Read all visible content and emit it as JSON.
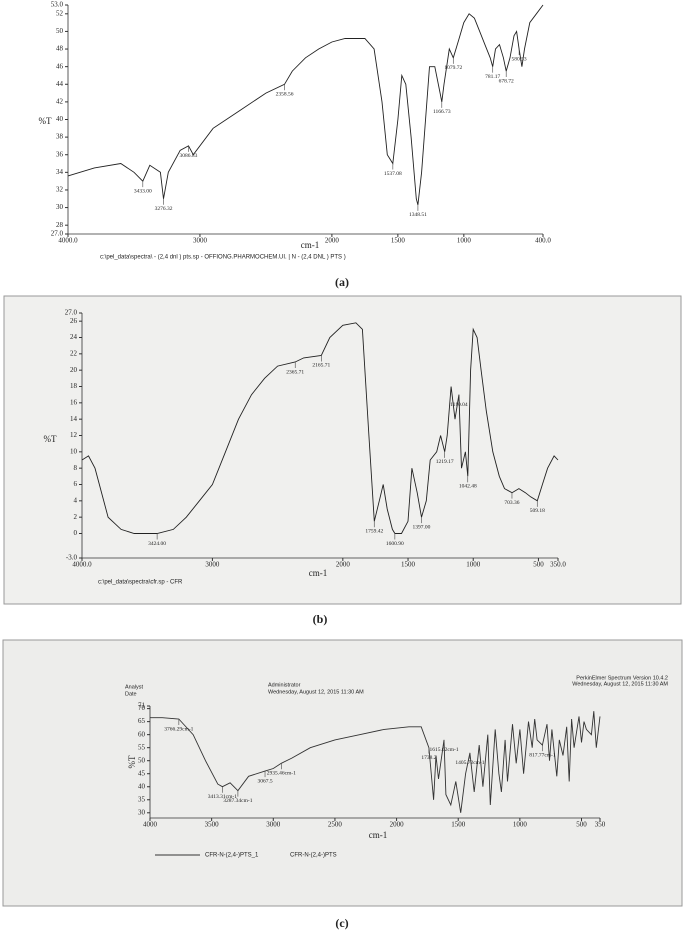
{
  "captions": [
    "(a)",
    "(b)",
    "(c)"
  ],
  "chart_data": [
    {
      "type": "line",
      "ylabel": "%T",
      "xlabel": "cm-1",
      "footnote": "c:\\pel_data\\spectra\\ - (2,4 dnl ) pts.sp - OFFIONG.PHARMOCHEM.UI. | N - (2,4 DNL ) PTS )",
      "xlim": [
        4000,
        400
      ],
      "xticks": [
        {
          "value": 4000,
          "label": "4000.0"
        },
        3000,
        2000,
        1500,
        1000,
        {
          "value": 400,
          "label": "400.0"
        }
      ],
      "ylim": [
        27,
        53
      ],
      "yticks": [
        {
          "value": 27,
          "label": "27.0"
        },
        28,
        30,
        32,
        34,
        36,
        38,
        40,
        42,
        44,
        46,
        48,
        50,
        52,
        {
          "value": 53,
          "label": "53.0"
        }
      ],
      "x": [
        4000,
        3800,
        3600,
        3500,
        3433,
        3380,
        3300,
        3276,
        3240,
        3150,
        3087,
        3050,
        2900,
        2700,
        2500,
        2359,
        2300,
        2200,
        2100,
        2000,
        1900,
        1750,
        1680,
        1620,
        1580,
        1538,
        1500,
        1470,
        1440,
        1400,
        1360,
        1348,
        1320,
        1260,
        1220,
        1180,
        1167,
        1150,
        1110,
        1080,
        1040,
        1000,
        960,
        920,
        880,
        840,
        800,
        781,
        760,
        730,
        700,
        679,
        650,
        620,
        600,
        581,
        560,
        540,
        500,
        450,
        400
      ],
      "series": [
        {
          "color": "#222222",
          "values": [
            33.6,
            34.5,
            35,
            34,
            33,
            34.8,
            34,
            31,
            34,
            36.5,
            37,
            36,
            39,
            41,
            43,
            44,
            45.5,
            47,
            48,
            48.8,
            49.2,
            49.2,
            48,
            42,
            36,
            35,
            40,
            45,
            44,
            38,
            31,
            30.3,
            34,
            46,
            46,
            43,
            42,
            44,
            48,
            47,
            49,
            51,
            52,
            51.5,
            50,
            48.5,
            47,
            46,
            48,
            48.5,
            47,
            45.5,
            47,
            49.5,
            50,
            48,
            46,
            48,
            51,
            52,
            53
          ]
        }
      ],
      "annotations": [
        {
          "label": "3433.00",
          "x": 3433,
          "y": 33
        },
        {
          "label": "3276.32",
          "x": 3276,
          "y": 31
        },
        {
          "label": "3086.83",
          "x": 3087,
          "y": 37
        },
        {
          "label": "2358.56",
          "x": 2359,
          "y": 44
        },
        {
          "label": "1537.08",
          "x": 1538,
          "y": 35
        },
        {
          "label": "1348.51",
          "x": 1348,
          "y": 30.3
        },
        {
          "label": "1166.73",
          "x": 1167,
          "y": 42
        },
        {
          "label": "1079.72",
          "x": 1080,
          "y": 47
        },
        {
          "label": "781.17",
          "x": 781,
          "y": 46
        },
        {
          "label": "678.72",
          "x": 679,
          "y": 45.5
        },
        {
          "label": "580.53",
          "x": 581,
          "y": 48
        }
      ]
    },
    {
      "type": "line",
      "ylabel": "%T",
      "xlabel": "cm-1",
      "footnote": "c:\\pel_data\\spectra\\cfr.sp - CFR",
      "xlim": [
        4000,
        350
      ],
      "xticks": [
        {
          "value": 4000,
          "label": "4000.0"
        },
        3000,
        2000,
        1500,
        1000,
        500,
        {
          "value": 350,
          "label": "350.0"
        }
      ],
      "ylim": [
        -3,
        27
      ],
      "yticks": [
        {
          "value": -3,
          "label": "-3.0"
        },
        0,
        2,
        4,
        6,
        8,
        10,
        12,
        14,
        16,
        18,
        20,
        22,
        24,
        26,
        {
          "value": 27,
          "label": "27.0"
        }
      ],
      "x": [
        4000,
        3950,
        3900,
        3800,
        3700,
        3600,
        3424,
        3300,
        3200,
        3100,
        3000,
        2900,
        2800,
        2700,
        2600,
        2500,
        2365,
        2300,
        2165,
        2100,
        2000,
        1900,
        1850,
        1800,
        1759,
        1720,
        1690,
        1660,
        1620,
        1601,
        1550,
        1500,
        1470,
        1430,
        1397,
        1360,
        1330,
        1280,
        1250,
        1219,
        1200,
        1170,
        1140,
        1110,
        1090,
        1060,
        1042,
        1020,
        1000,
        970,
        940,
        900,
        850,
        800,
        760,
        703,
        650,
        600,
        560,
        509,
        470,
        430,
        380,
        350
      ],
      "series": [
        {
          "color": "#222222",
          "values": [
            9,
            9.5,
            8,
            2,
            0.5,
            0,
            0,
            0.5,
            2,
            4,
            6,
            10,
            14,
            17,
            19,
            20.5,
            21,
            21.5,
            21.8,
            24,
            25.5,
            25.8,
            25,
            12,
            1.5,
            4,
            6,
            3,
            0.5,
            0,
            0,
            1.5,
            8,
            5,
            2,
            4,
            9,
            10,
            12,
            10,
            12,
            18,
            14,
            17,
            8,
            10,
            7,
            20,
            25,
            24,
            20,
            15,
            10,
            7,
            5.5,
            5,
            5.5,
            5,
            4.5,
            4,
            6,
            8,
            9.5,
            9
          ]
        }
      ],
      "annotations": [
        {
          "label": "3424.00",
          "x": 3424,
          "y": 0
        },
        {
          "label": "2365.71",
          "x": 2365,
          "y": 21
        },
        {
          "label": "2165.71",
          "x": 2165,
          "y": 21.8
        },
        {
          "label": "1759.42",
          "x": 1759,
          "y": 1.5
        },
        {
          "label": "1600.90",
          "x": 1601,
          "y": 0
        },
        {
          "label": "1397.00",
          "x": 1397,
          "y": 2
        },
        {
          "label": "1219.17",
          "x": 1219,
          "y": 10
        },
        {
          "label": "1110.04",
          "x": 1110,
          "y": 17
        },
        {
          "label": "1042.48",
          "x": 1042,
          "y": 7
        },
        {
          "label": "703.36",
          "x": 703,
          "y": 5
        },
        {
          "label": "509.18",
          "x": 509,
          "y": 4
        }
      ]
    },
    {
      "type": "line",
      "ylabel": "%T",
      "xlabel": "cm-1",
      "notes": [
        "Analyst",
        "Date",
        "Administrator",
        "Wednesday, August 12, 2015 11:30 AM",
        "PerkinElmer Spectrum Version 10.4.2",
        "Wednesday, August 12, 2015 11:30 AM"
      ],
      "legend_labels": [
        "CFR-N-(2,4-)PTS_1",
        "CFR-N-(2,4-)PTS"
      ],
      "xlim": [
        4000,
        350
      ],
      "xticks": [
        4000,
        3500,
        3000,
        2500,
        2000,
        1500,
        1000,
        500,
        350
      ],
      "ylim": [
        28,
        71
      ],
      "yticks": [
        30,
        35,
        40,
        45,
        50,
        55,
        60,
        65,
        70,
        71
      ],
      "x": [
        4000,
        3900,
        3766,
        3650,
        3550,
        3450,
        3413,
        3350,
        3287,
        3200,
        3067,
        3000,
        2935,
        2850,
        2700,
        2500,
        2300,
        2100,
        1900,
        1800,
        1738,
        1700,
        1680,
        1660,
        1615,
        1600,
        1560,
        1520,
        1480,
        1440,
        1405,
        1370,
        1330,
        1300,
        1260,
        1240,
        1200,
        1170,
        1150,
        1120,
        1100,
        1060,
        1030,
        1000,
        970,
        930,
        900,
        880,
        860,
        817,
        780,
        760,
        740,
        700,
        680,
        650,
        620,
        600,
        580,
        560,
        520,
        500,
        480,
        460,
        420,
        400,
        380,
        350
      ],
      "series": [
        {
          "name": "CFR-N-(2,4-)PTS_1",
          "color": "#333333",
          "values": [
            66.5,
            66.5,
            66,
            60,
            50,
            41,
            40,
            41.5,
            38.5,
            44,
            46,
            47,
            49,
            51,
            55,
            58,
            60,
            62,
            63,
            63,
            55,
            35,
            52,
            43,
            58,
            37,
            33,
            42,
            30,
            45,
            53,
            38,
            56,
            40,
            60,
            33,
            62,
            45,
            38,
            58,
            42,
            64,
            49,
            62,
            45,
            65,
            55,
            66,
            58,
            56,
            64,
            50,
            62,
            44,
            58,
            52,
            63,
            42,
            66,
            55,
            67,
            57,
            65,
            62,
            60,
            69,
            55,
            67
          ]
        }
      ],
      "annotations": [
        {
          "label": "3766.29cm-1",
          "x": 3766,
          "y": 66
        },
        {
          "label": "3413.31cm-1",
          "x": 3413,
          "y": 40
        },
        {
          "label": "3287.34cm-1",
          "x": 3287,
          "y": 38.5
        },
        {
          "label": "3067.5",
          "x": 3067,
          "y": 46
        },
        {
          "label": "2935.46cm-1",
          "x": 2935,
          "y": 49
        },
        {
          "label": "1738.2",
          "x": 1738,
          "y": 55
        },
        {
          "label": "1615.02cm-1",
          "x": 1615,
          "y": 58
        },
        {
          "label": "1405.72cm-1",
          "x": 1405,
          "y": 53
        },
        {
          "label": "817.77cm-1",
          "x": 817,
          "y": 56
        }
      ]
    }
  ]
}
